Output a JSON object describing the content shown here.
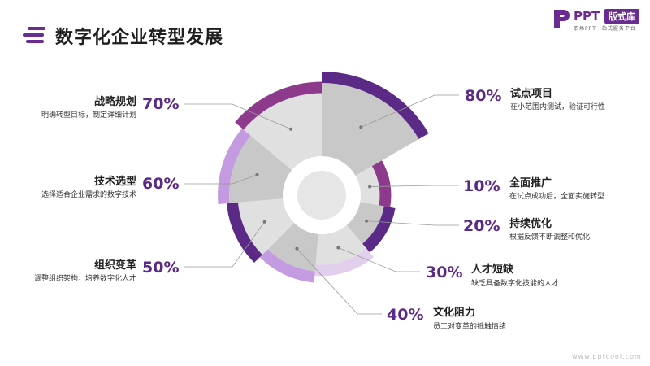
{
  "page_title": "数字化企业转型发展",
  "logo": {
    "mark": "ppt-logo-icon",
    "brand": "PPT",
    "badge": "版式库",
    "tagline": "职场PPT一站式服务平台"
  },
  "footer": {
    "url": "www.pptcool.com"
  },
  "colors": {
    "accent_dark": "#5b2a86",
    "accent_mid": "#8e3a8c",
    "accent_light": "#c49ae0",
    "accent_pale": "#e2cfee",
    "sector_gray": "#c8c8c8",
    "sector_light": "#e0e0e0"
  },
  "chart_data": {
    "type": "pie",
    "variant": "nightingale-rose",
    "categories": [
      "试点项目",
      "全面推广",
      "持续优化",
      "人才短缺",
      "文化阻力",
      "组织变革",
      "技术选型",
      "战略规划"
    ],
    "values": [
      80,
      10,
      20,
      30,
      40,
      50,
      60,
      70
    ],
    "value_labels": [
      "80%",
      "10%",
      "20%",
      "30%",
      "40%",
      "50%",
      "60%",
      "70%"
    ],
    "descriptions": [
      "在小范围内测试，验证可行性",
      "在试点成功后，全面实施转型",
      "根据反馈不断调整和优化",
      "缺乏具备数字化技能的人才",
      "员工对变革的抵触情绪",
      "调整组织架构，培养数字化人才",
      "选择适合企业需求的数字技术",
      "明确转型目标，制定详细计划"
    ],
    "ring_colors": [
      "#5b2a86",
      "#8e3a8c",
      "#5b2a86",
      "#e2cfee",
      "#c49ae0",
      "#5b2a86",
      "#c49ae0",
      "#8e3a8c"
    ],
    "sector_colors": [
      "#c8c8c8",
      "#e0e0e0",
      "#c8c8c8",
      "#e0e0e0",
      "#c8c8c8",
      "#e0e0e0",
      "#c8c8c8",
      "#e0e0e0"
    ]
  }
}
